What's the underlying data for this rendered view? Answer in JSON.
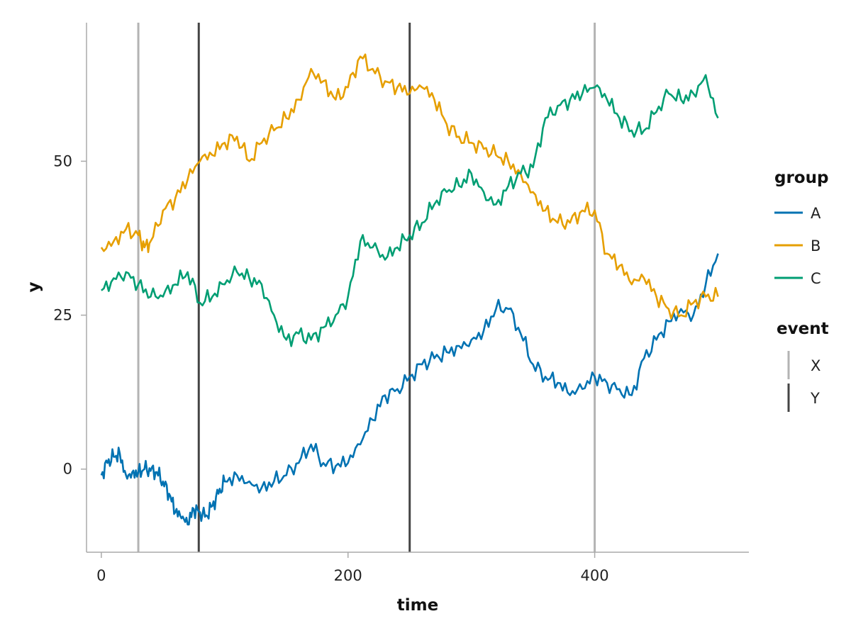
{
  "chart_data": {
    "type": "line",
    "title": "",
    "xlabel": "time",
    "ylabel": "y",
    "xlim": [
      -12,
      525
    ],
    "ylim": [
      -13.5,
      72.5
    ],
    "xticks": [
      0,
      200,
      400
    ],
    "yticks": [
      0,
      25,
      50
    ],
    "grid": false,
    "legend_position": "right",
    "series": [
      {
        "name": "A",
        "color": "#0072B2",
        "points": [
          [
            0,
            -1
          ],
          [
            5,
            1
          ],
          [
            10,
            2
          ],
          [
            15,
            2.5
          ],
          [
            20,
            -1
          ],
          [
            25,
            -0.5
          ],
          [
            30,
            -0.5
          ],
          [
            35,
            0
          ],
          [
            40,
            -0.3
          ],
          [
            45,
            -0.5
          ],
          [
            50,
            -2
          ],
          [
            55,
            -4
          ],
          [
            60,
            -7
          ],
          [
            65,
            -8
          ],
          [
            70,
            -9
          ],
          [
            75,
            -6.5
          ],
          [
            80,
            -7
          ],
          [
            85,
            -7.5
          ],
          [
            90,
            -6
          ],
          [
            95,
            -4
          ],
          [
            100,
            -2
          ],
          [
            110,
            -1
          ],
          [
            120,
            -2
          ],
          [
            130,
            -3
          ],
          [
            140,
            -2
          ],
          [
            150,
            -1
          ],
          [
            160,
            1
          ],
          [
            170,
            4
          ],
          [
            180,
            1
          ],
          [
            190,
            0.5
          ],
          [
            200,
            1
          ],
          [
            210,
            4
          ],
          [
            220,
            8
          ],
          [
            230,
            12
          ],
          [
            240,
            13
          ],
          [
            250,
            15
          ],
          [
            260,
            17
          ],
          [
            270,
            18
          ],
          [
            280,
            19
          ],
          [
            290,
            20
          ],
          [
            300,
            21
          ],
          [
            310,
            22.5
          ],
          [
            320,
            26
          ],
          [
            330,
            26
          ],
          [
            340,
            22
          ],
          [
            350,
            17
          ],
          [
            360,
            15
          ],
          [
            370,
            14
          ],
          [
            380,
            12
          ],
          [
            390,
            13
          ],
          [
            400,
            15
          ],
          [
            410,
            14
          ],
          [
            420,
            13
          ],
          [
            430,
            12
          ],
          [
            440,
            18
          ],
          [
            450,
            21
          ],
          [
            460,
            24
          ],
          [
            470,
            26
          ],
          [
            480,
            25
          ],
          [
            490,
            30
          ],
          [
            500,
            35
          ]
        ]
      },
      {
        "name": "B",
        "color": "#E69F00",
        "points": [
          [
            0,
            36
          ],
          [
            10,
            37
          ],
          [
            20,
            39
          ],
          [
            30,
            38
          ],
          [
            35,
            36
          ],
          [
            40,
            37
          ],
          [
            50,
            42
          ],
          [
            60,
            44
          ],
          [
            70,
            47
          ],
          [
            80,
            50
          ],
          [
            90,
            51
          ],
          [
            100,
            53
          ],
          [
            110,
            54
          ],
          [
            120,
            50
          ],
          [
            130,
            53
          ],
          [
            140,
            55
          ],
          [
            150,
            57
          ],
          [
            160,
            60
          ],
          [
            170,
            65
          ],
          [
            180,
            63
          ],
          [
            190,
            60
          ],
          [
            200,
            62
          ],
          [
            210,
            67
          ],
          [
            220,
            65
          ],
          [
            230,
            63
          ],
          [
            240,
            62
          ],
          [
            250,
            61
          ],
          [
            260,
            62
          ],
          [
            270,
            60
          ],
          [
            280,
            56
          ],
          [
            290,
            54
          ],
          [
            300,
            53
          ],
          [
            310,
            52
          ],
          [
            320,
            51
          ],
          [
            330,
            50
          ],
          [
            340,
            48
          ],
          [
            350,
            45
          ],
          [
            360,
            42
          ],
          [
            370,
            40
          ],
          [
            380,
            40
          ],
          [
            390,
            42
          ],
          [
            400,
            42
          ],
          [
            410,
            35
          ],
          [
            420,
            33
          ],
          [
            430,
            30
          ],
          [
            440,
            31
          ],
          [
            450,
            28
          ],
          [
            460,
            26
          ],
          [
            470,
            25
          ],
          [
            480,
            27
          ],
          [
            490,
            28
          ],
          [
            500,
            28
          ]
        ]
      },
      {
        "name": "C",
        "color": "#009E73",
        "points": [
          [
            0,
            29
          ],
          [
            10,
            31
          ],
          [
            20,
            32
          ],
          [
            30,
            30
          ],
          [
            40,
            28
          ],
          [
            50,
            28
          ],
          [
            60,
            30
          ],
          [
            70,
            32
          ],
          [
            80,
            27
          ],
          [
            90,
            28
          ],
          [
            100,
            30
          ],
          [
            110,
            32
          ],
          [
            120,
            31
          ],
          [
            130,
            30
          ],
          [
            140,
            25
          ],
          [
            150,
            21
          ],
          [
            160,
            22
          ],
          [
            170,
            21
          ],
          [
            180,
            23
          ],
          [
            190,
            25
          ],
          [
            200,
            28
          ],
          [
            210,
            37
          ],
          [
            220,
            36
          ],
          [
            230,
            34
          ],
          [
            240,
            36
          ],
          [
            250,
            38
          ],
          [
            260,
            40
          ],
          [
            270,
            43
          ],
          [
            280,
            45
          ],
          [
            290,
            46
          ],
          [
            300,
            48
          ],
          [
            310,
            45
          ],
          [
            320,
            43
          ],
          [
            330,
            46
          ],
          [
            340,
            48
          ],
          [
            350,
            49
          ],
          [
            360,
            57
          ],
          [
            370,
            59
          ],
          [
            380,
            60
          ],
          [
            390,
            61
          ],
          [
            400,
            62
          ],
          [
            410,
            60
          ],
          [
            420,
            57
          ],
          [
            430,
            55
          ],
          [
            440,
            55
          ],
          [
            450,
            58
          ],
          [
            460,
            61
          ],
          [
            470,
            60
          ],
          [
            480,
            61
          ],
          [
            490,
            64
          ],
          [
            500,
            57
          ]
        ]
      }
    ],
    "events": [
      {
        "name": "X",
        "color": "#B3B3B3",
        "x": [
          30,
          400
        ]
      },
      {
        "name": "Y",
        "color": "#444444",
        "x": [
          79,
          250
        ]
      }
    ],
    "legend": {
      "group_title": "group",
      "group_items": [
        "A",
        "B",
        "C"
      ],
      "event_title": "event",
      "event_items": [
        "X",
        "Y"
      ]
    }
  }
}
